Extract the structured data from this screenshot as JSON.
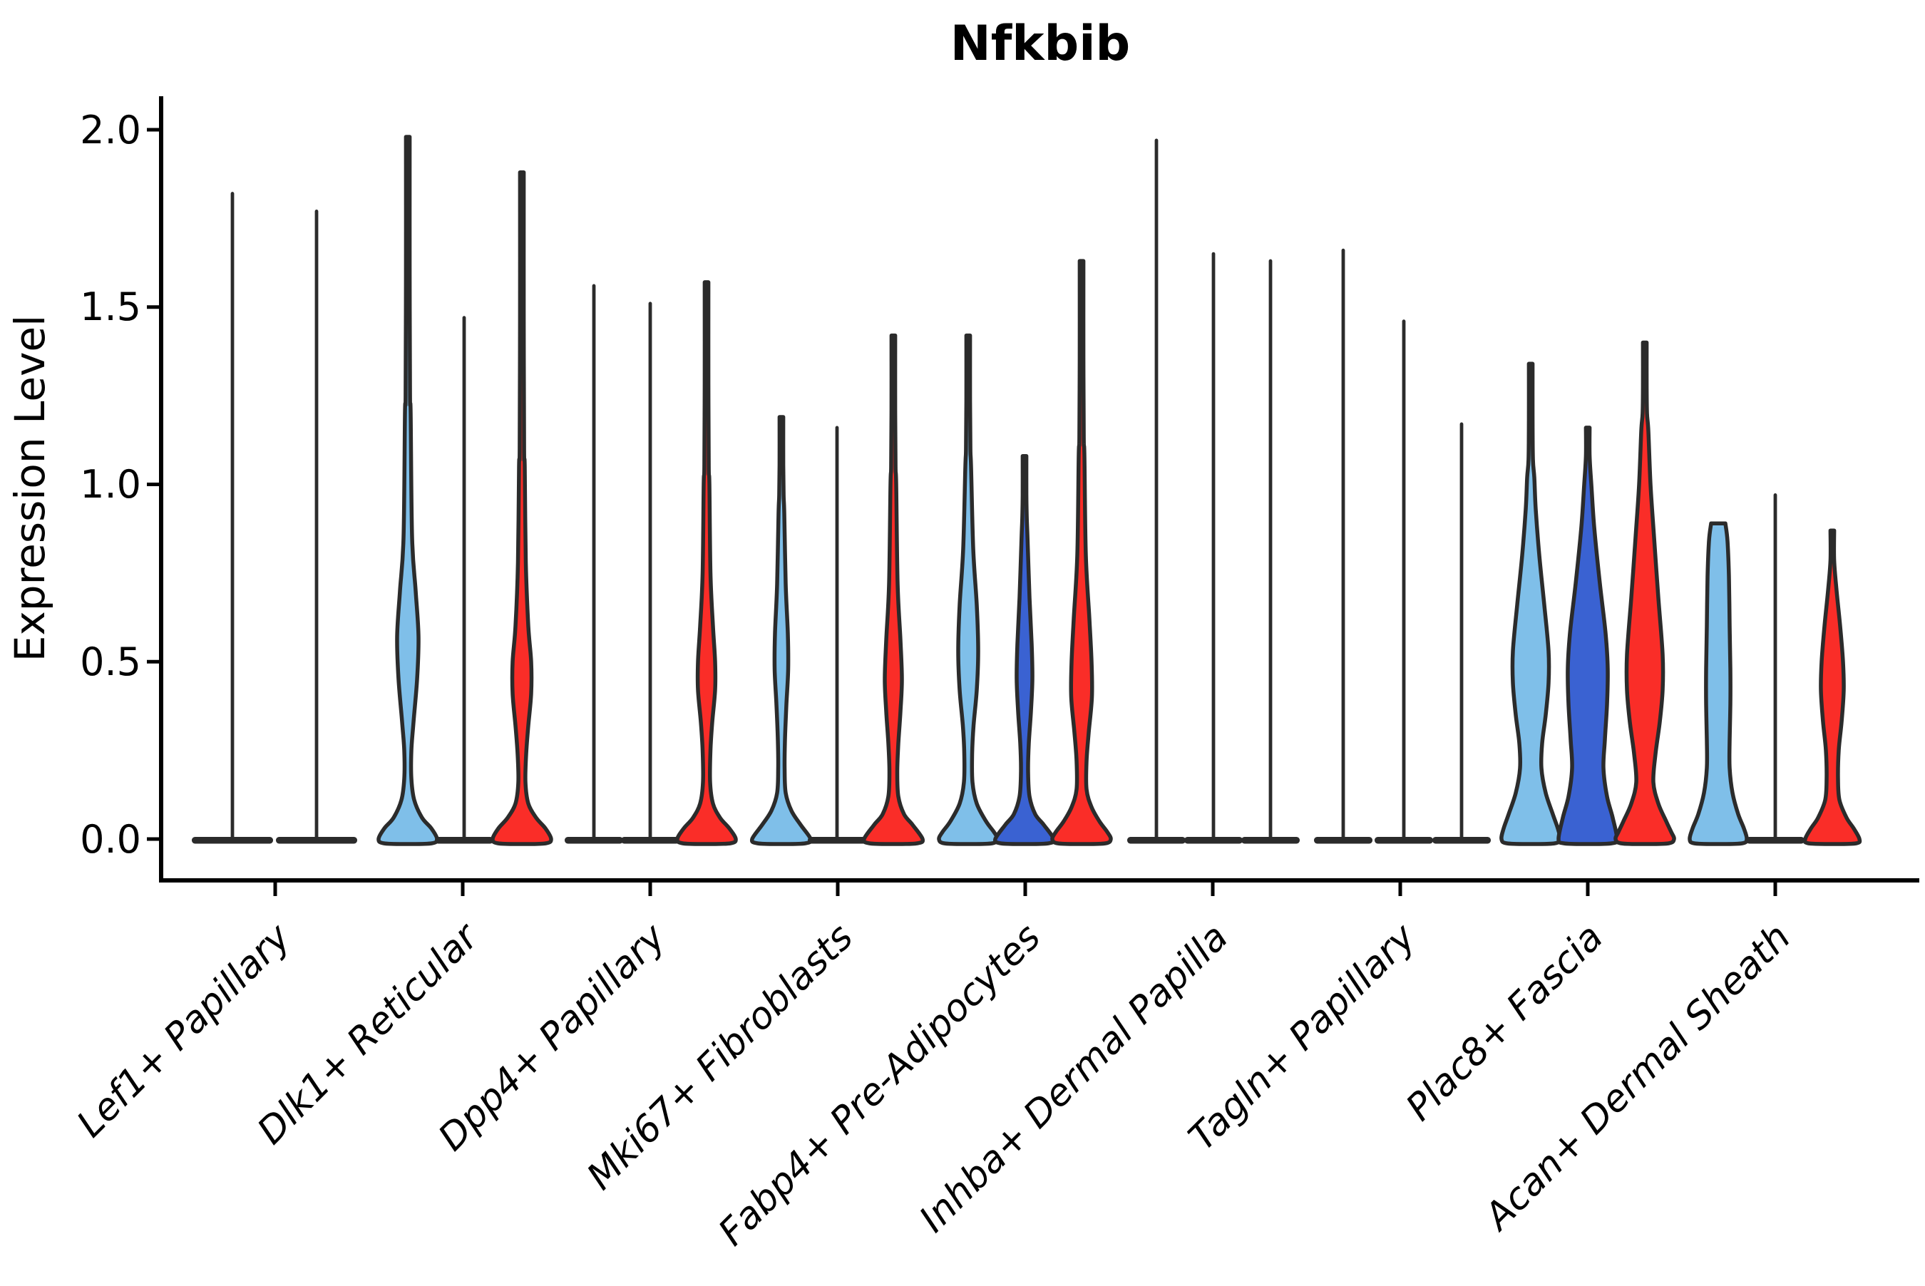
{
  "chart_data": {
    "type": "violin",
    "title": "Nfkbib",
    "ylabel": "Expression Level",
    "xlabel": "",
    "ylim": [
      0,
      2.05
    ],
    "yticks": [
      "2.0",
      "1.5",
      "1.0",
      "0.5",
      "0.0"
    ],
    "ytick_values": [
      2.0,
      1.5,
      1.0,
      0.5,
      0.0
    ],
    "grid": "off",
    "legend_position": "none",
    "colors": {
      "light_blue": "#7FBFE9",
      "dark_blue": "#3A62D2",
      "red": "#FA2D28",
      "outline": "#2B2B2B",
      "axis": "#000000",
      "background": "#FFFFFF"
    },
    "categories": [
      "Lef1+ Papillary",
      "Dlk1+ Reticular",
      "Dpp4+ Papillary",
      "Mki67+ Fibroblasts",
      "Fabp4+ Pre-Adipocytes",
      "Inhba+ Dermal Papilla",
      "Tagln+ Papillary",
      "Plac8+ Fascia",
      "Acan+ Dermal Sheath"
    ],
    "groups": [
      {
        "label": "Lef1+ Papillary",
        "violins": [
          {
            "fill": "none",
            "offset": -60,
            "max": 1.82,
            "base_hw": 57
          },
          {
            "fill": "none",
            "offset": 58,
            "max": 1.77,
            "base_hw": 57
          }
        ]
      },
      {
        "label": "Dlk1+ Reticular",
        "violins": [
          {
            "fill": "light_blue",
            "offset": -77,
            "max": 1.98,
            "base_hw": 41,
            "profile": [
              [
                1.2,
                4
              ],
              [
                0.85,
                6
              ],
              [
                0.7,
                11
              ],
              [
                0.57,
                15
              ],
              [
                0.45,
                13
              ],
              [
                0.33,
                8
              ],
              [
                0.25,
                5
              ],
              [
                0.17,
                5
              ],
              [
                0.11,
                9
              ],
              [
                0.06,
                20
              ],
              [
                0.03,
                33
              ],
              [
                0,
                41
              ]
            ]
          },
          {
            "fill": "none",
            "offset": 2,
            "max": 1.47,
            "base_hw": 41
          },
          {
            "fill": "red",
            "offset": 83,
            "max": 1.88,
            "base_hw": 41,
            "profile": [
              [
                1.05,
                4
              ],
              [
                0.78,
                5.5
              ],
              [
                0.6,
                9
              ],
              [
                0.5,
                13
              ],
              [
                0.41,
                13
              ],
              [
                0.32,
                9
              ],
              [
                0.24,
                6
              ],
              [
                0.16,
                5
              ],
              [
                0.1,
                9
              ],
              [
                0.06,
                20
              ],
              [
                0.03,
                33
              ],
              [
                0,
                41
              ]
            ]
          }
        ]
      },
      {
        "label": "Dpp4+ Papillary",
        "violins": [
          {
            "fill": "none",
            "offset": -79,
            "max": 1.56,
            "base_hw": 41
          },
          {
            "fill": "none",
            "offset": 0,
            "max": 1.51,
            "base_hw": 41
          },
          {
            "fill": "red",
            "offset": 79,
            "max": 1.57,
            "base_hw": 41,
            "profile": [
              [
                1.0,
                4
              ],
              [
                0.75,
                5.5
              ],
              [
                0.6,
                9
              ],
              [
                0.5,
                12
              ],
              [
                0.42,
                12
              ],
              [
                0.33,
                8
              ],
              [
                0.25,
                5.5
              ],
              [
                0.16,
                5
              ],
              [
                0.1,
                9
              ],
              [
                0.06,
                19
              ],
              [
                0.03,
                32
              ],
              [
                0,
                41
              ]
            ]
          }
        ]
      },
      {
        "label": "Mki67+ Fibroblasts",
        "violins": [
          {
            "fill": "light_blue",
            "offset": -79,
            "max": 1.19,
            "base_hw": 41,
            "profile": [
              [
                0.92,
                4
              ],
              [
                0.72,
                6
              ],
              [
                0.58,
                9
              ],
              [
                0.48,
                9.5
              ],
              [
                0.38,
                7
              ],
              [
                0.28,
                5
              ],
              [
                0.2,
                4.5
              ],
              [
                0.13,
                6
              ],
              [
                0.08,
                14
              ],
              [
                0.04,
                27
              ],
              [
                0,
                41
              ]
            ]
          },
          {
            "fill": "none",
            "offset": -1,
            "max": 1.16,
            "base_hw": 41
          },
          {
            "fill": "red",
            "offset": 78,
            "max": 1.42,
            "base_hw": 41,
            "profile": [
              [
                1.0,
                4
              ],
              [
                0.72,
                6
              ],
              [
                0.56,
                10
              ],
              [
                0.45,
                12
              ],
              [
                0.36,
                10
              ],
              [
                0.27,
                7
              ],
              [
                0.19,
                5.5
              ],
              [
                0.12,
                7
              ],
              [
                0.07,
                15
              ],
              [
                0.04,
                27
              ],
              [
                0,
                41
              ]
            ]
          }
        ]
      },
      {
        "label": "Fabp4+ Pre-Adipocytes",
        "violins": [
          {
            "fill": "light_blue",
            "offset": -80,
            "max": 1.42,
            "base_hw": 41,
            "profile": [
              [
                1.05,
                4
              ],
              [
                0.82,
                7
              ],
              [
                0.66,
                12
              ],
              [
                0.53,
                14
              ],
              [
                0.42,
                12
              ],
              [
                0.32,
                7.5
              ],
              [
                0.24,
                5.5
              ],
              [
                0.16,
                6
              ],
              [
                0.1,
                12
              ],
              [
                0.05,
                25
              ],
              [
                0.02,
                36
              ],
              [
                0,
                41
              ]
            ]
          },
          {
            "fill": "dark_blue",
            "offset": -1,
            "max": 1.08,
            "base_hw": 41,
            "profile": [
              [
                0.86,
                4
              ],
              [
                0.68,
                7
              ],
              [
                0.55,
                10
              ],
              [
                0.45,
                11
              ],
              [
                0.36,
                9
              ],
              [
                0.27,
                6
              ],
              [
                0.19,
                5
              ],
              [
                0.12,
                7
              ],
              [
                0.07,
                15
              ],
              [
                0.04,
                27
              ],
              [
                0,
                41
              ]
            ]
          },
          {
            "fill": "red",
            "offset": 79,
            "max": 1.63,
            "base_hw": 41,
            "profile": [
              [
                1.08,
                4
              ],
              [
                0.8,
                6
              ],
              [
                0.62,
                11
              ],
              [
                0.5,
                14
              ],
              [
                0.4,
                14.5
              ],
              [
                0.3,
                10
              ],
              [
                0.22,
                7
              ],
              [
                0.14,
                7
              ],
              [
                0.09,
                14
              ],
              [
                0.05,
                25
              ],
              [
                0.02,
                36
              ],
              [
                0,
                41
              ]
            ]
          }
        ]
      },
      {
        "label": "Inhba+ Dermal Papilla",
        "violins": [
          {
            "fill": "none",
            "offset": -79,
            "max": 1.97,
            "base_hw": 41
          },
          {
            "fill": "none",
            "offset": 1,
            "max": 1.65,
            "base_hw": 41
          },
          {
            "fill": "none",
            "offset": 81,
            "max": 1.63,
            "base_hw": 41
          }
        ]
      },
      {
        "label": "Tagln+ Papillary",
        "violins": [
          {
            "fill": "none",
            "offset": -80,
            "max": 1.66,
            "base_hw": 41
          },
          {
            "fill": "none",
            "offset": 5,
            "max": 1.46,
            "base_hw": 41
          },
          {
            "fill": "none",
            "offset": 86,
            "max": 1.17,
            "base_hw": 41
          }
        ]
      },
      {
        "label": "Plac8+ Fascia",
        "violins": [
          {
            "fill": "light_blue",
            "offset": -80,
            "max": 1.34,
            "base_hw": 41,
            "profile": [
              [
                1.02,
                5
              ],
              [
                0.93,
                7
              ],
              [
                0.8,
                12
              ],
              [
                0.66,
                19
              ],
              [
                0.53,
                25
              ],
              [
                0.44,
                25
              ],
              [
                0.35,
                21
              ],
              [
                0.27,
                16
              ],
              [
                0.2,
                15
              ],
              [
                0.13,
                21
              ],
              [
                0.07,
                31
              ],
              [
                0.03,
                38
              ],
              [
                0,
                41
              ]
            ]
          },
          {
            "fill": "dark_blue",
            "offset": 0,
            "max": 1.16,
            "base_hw": 41,
            "profile": [
              [
                1.0,
                5
              ],
              [
                0.88,
                9
              ],
              [
                0.72,
                17
              ],
              [
                0.58,
                25
              ],
              [
                0.48,
                28
              ],
              [
                0.38,
                27
              ],
              [
                0.28,
                24
              ],
              [
                0.2,
                22
              ],
              [
                0.12,
                27
              ],
              [
                0.06,
                35
              ],
              [
                0,
                41
              ]
            ]
          },
          {
            "fill": "red",
            "offset": 80,
            "max": 1.4,
            "base_hw": 41,
            "profile": [
              [
                1.15,
                5
              ],
              [
                1.0,
                8
              ],
              [
                0.85,
                13
              ],
              [
                0.68,
                19
              ],
              [
                0.52,
                25
              ],
              [
                0.42,
                25
              ],
              [
                0.33,
                21
              ],
              [
                0.24,
                15
              ],
              [
                0.16,
                12
              ],
              [
                0.1,
                19
              ],
              [
                0.05,
                30
              ],
              [
                0.02,
                37
              ],
              [
                0,
                41
              ]
            ]
          }
        ]
      },
      {
        "label": "Acan+ Dermal Sheath",
        "violins": [
          {
            "fill": "light_blue",
            "offset": -80,
            "max": 0.89,
            "blunt": true,
            "base_hw": 41,
            "profile": [
              [
                0.89,
                10
              ],
              [
                0.84,
                13
              ],
              [
                0.74,
                15
              ],
              [
                0.6,
                16
              ],
              [
                0.48,
                17
              ],
              [
                0.38,
                17
              ],
              [
                0.28,
                16
              ],
              [
                0.2,
                16
              ],
              [
                0.13,
                20
              ],
              [
                0.07,
                28
              ],
              [
                0.03,
                36
              ],
              [
                0,
                40
              ]
            ]
          },
          {
            "fill": "none",
            "offset": 0,
            "max": 0.97,
            "base_hw": 41
          },
          {
            "fill": "red",
            "offset": 80,
            "max": 0.87,
            "base_hw": 41,
            "profile": [
              [
                0.7,
                6
              ],
              [
                0.6,
                11
              ],
              [
                0.5,
                15
              ],
              [
                0.42,
                16
              ],
              [
                0.33,
                13
              ],
              [
                0.25,
                9
              ],
              [
                0.17,
                8
              ],
              [
                0.11,
                10
              ],
              [
                0.06,
                20
              ],
              [
                0.03,
                30
              ],
              [
                0,
                38
              ]
            ]
          }
        ]
      }
    ]
  }
}
